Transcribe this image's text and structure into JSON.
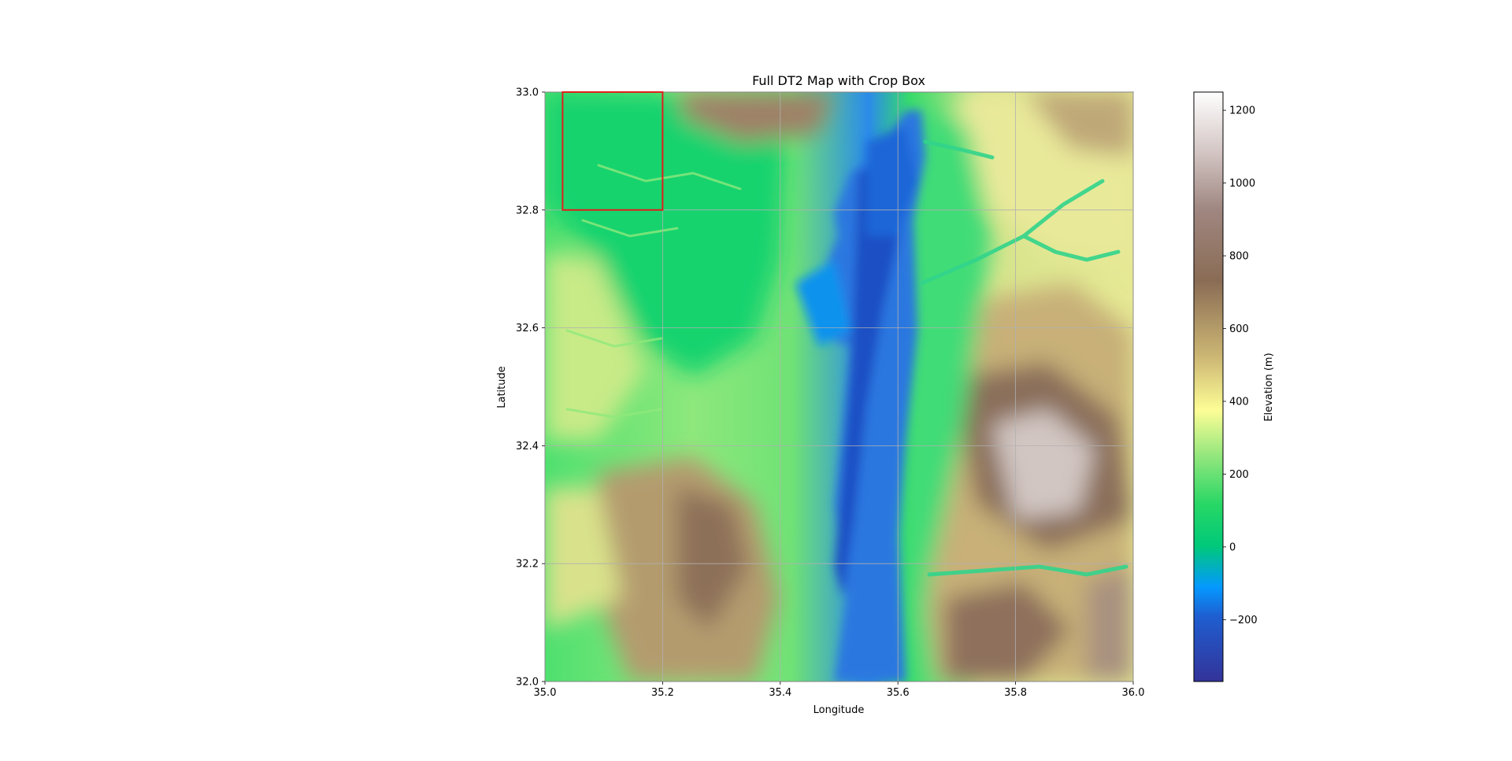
{
  "title": "Full DT2 Map with Crop Box",
  "map": {
    "xlabel": "Longitude",
    "ylabel": "Latitude",
    "xlim": [
      35.0,
      36.0
    ],
    "ylim": [
      32.0,
      33.0
    ],
    "xticks": [
      "35.0",
      "35.2",
      "35.4",
      "35.6",
      "35.8",
      "36.0"
    ],
    "yticks": [
      "32.0",
      "32.2",
      "32.4",
      "32.6",
      "32.8",
      "33.0"
    ],
    "grid": true,
    "crop_box": {
      "lon_min": 35.03,
      "lon_max": 35.2,
      "lat_min": 32.8,
      "lat_max": 33.0,
      "color": "#e0201b"
    }
  },
  "colorbar": {
    "label": "Elevation (m)",
    "range": [
      -370,
      1250
    ],
    "ticks": [
      "−200",
      "0",
      "200",
      "400",
      "600",
      "800",
      "1000",
      "1200"
    ],
    "tick_values": [
      -200,
      0,
      200,
      400,
      600,
      800,
      1000,
      1200
    ],
    "colormap": "terrain"
  }
}
